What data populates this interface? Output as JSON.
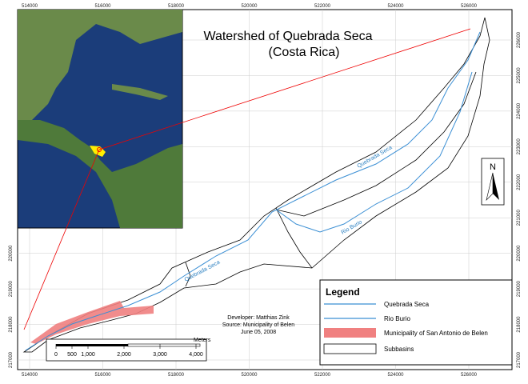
{
  "map": {
    "title": "Watershed of Quebrada Seca",
    "subtitle": "(Costa Rica)",
    "x_labels": [
      "514000",
      "516000",
      "518000",
      "520000",
      "522000",
      "524000",
      "526000"
    ],
    "y_labels": [
      "226000",
      "225000",
      "224000",
      "223000",
      "222000",
      "221000",
      "220000",
      "219000",
      "218000",
      "217000"
    ],
    "stream_labels": [
      "Quebrada Seca",
      "Quebrada Seca",
      "Rio Burio"
    ],
    "north": "N"
  },
  "legend": {
    "title": "Legend",
    "items": [
      {
        "label": "Quebrada Seca"
      },
      {
        "label": "Rio Burio"
      },
      {
        "label": "Municipality of San Antonio de Belen"
      },
      {
        "label": "Subbasins"
      }
    ]
  },
  "scale_bar": {
    "labels": [
      "0",
      "500",
      "1,000",
      "2,000",
      "3,000",
      "4,000"
    ],
    "unit": "Meters"
  },
  "credits": [
    "Developer: Matthias Zink",
    "Source: Municipality of Belen",
    "June 05, 2008"
  ]
}
